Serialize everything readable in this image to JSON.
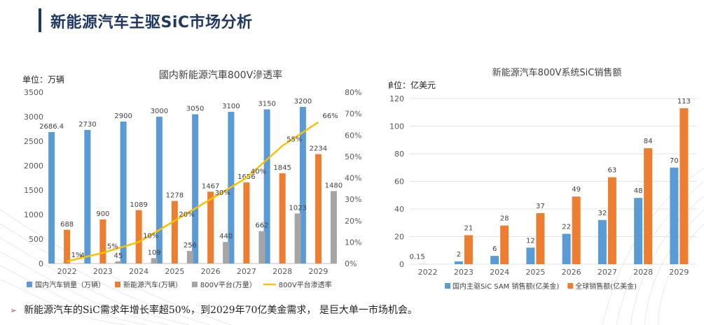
{
  "page": {
    "title": "新能源汽车主驱SiC市场分析",
    "footer": "新能源汽车的SiC需求年增长率超50%，到2029年70亿美金需求， 是巨大单一市场机会。",
    "footer_bullet": "➢"
  },
  "colors": {
    "blue": "#5b9bd5",
    "orange": "#ed7d31",
    "gray": "#a5a5a5",
    "yellow": "#ffc000",
    "title": "#1f3864"
  },
  "chart_data": [
    {
      "type": "bar",
      "title": "國内新能源汽車800V滲透率",
      "unit_label": "单位：万辆",
      "categories": [
        "2022",
        "2023",
        "2024",
        "2025",
        "2026",
        "2027",
        "2028",
        "2029"
      ],
      "ylim": [
        0,
        3500
      ],
      "y_ticks": [
        "0",
        "500",
        "1000",
        "1500",
        "2000",
        "2500",
        "3000",
        "3500"
      ],
      "y2lim": [
        0,
        80
      ],
      "y2_ticks": [
        "0%",
        "10%",
        "20%",
        "30%",
        "40%",
        "50%",
        "60%",
        "70%",
        "80%"
      ],
      "series": [
        {
          "name": "国内汽车销量（万辆）",
          "kind": "bar",
          "axis": "left",
          "color": "#5b9bd5",
          "values": [
            2686.4,
            2730,
            2900,
            3000,
            3050,
            3100,
            3150,
            3200
          ],
          "labels": [
            "2686.4",
            "2730",
            "2900",
            "3000",
            "3050",
            "3100",
            "3150",
            "3200"
          ]
        },
        {
          "name": "新能源汽车(万辆）",
          "kind": "bar",
          "axis": "left",
          "color": "#ed7d31",
          "values": [
            688,
            900,
            1089,
            1278,
            1467,
            1656,
            1845,
            2234
          ],
          "labels": [
            "688",
            "900",
            "1089",
            "1278",
            "1467",
            "1656",
            "1845",
            "2234"
          ]
        },
        {
          "name": "800V平台(万量）",
          "kind": "bar",
          "axis": "left",
          "color": "#a5a5a5",
          "values": [
            4,
            45,
            109,
            256,
            440,
            662,
            1023,
            1480
          ],
          "labels": [
            "4",
            "45",
            "109",
            "256",
            "440",
            "662",
            "1023",
            "1480"
          ]
        },
        {
          "name": "800V平台渗透率",
          "kind": "line",
          "axis": "right",
          "color": "#ffc000",
          "values": [
            1,
            5,
            10,
            20,
            30,
            40,
            55,
            66
          ],
          "labels": [
            "1%",
            "5%",
            "10%",
            "20%",
            "30%",
            "40%",
            "55%",
            "66%"
          ]
        }
      ],
      "grid": false,
      "legend": "bottom"
    },
    {
      "type": "bar",
      "title": "新能源汽车800V系统SiC销售额",
      "unit_label": "单位：亿美元",
      "categories": [
        "2022",
        "2023",
        "2024",
        "2025",
        "2026",
        "2027",
        "2028",
        "2029"
      ],
      "ylim": [
        0,
        120
      ],
      "y_ticks": [
        "0",
        "20",
        "40",
        "60",
        "80",
        "100",
        "120"
      ],
      "series": [
        {
          "name": "国内主驱SiC SAM 销售额(亿美金)",
          "kind": "bar",
          "color": "#5b9bd5",
          "values": [
            0.15,
            2,
            6,
            12,
            22,
            32,
            48,
            70
          ],
          "labels": [
            "0.15",
            "2",
            "6",
            "12",
            "22",
            "32",
            "48",
            "70"
          ]
        },
        {
          "name": "全球销售额(亿美金)",
          "kind": "bar",
          "color": "#ed7d31",
          "values": [
            null,
            21,
            28,
            37,
            49,
            63,
            84,
            113
          ],
          "labels": [
            "",
            "21",
            "28",
            "37",
            "49",
            "63",
            "84",
            "113"
          ]
        }
      ],
      "grid": true,
      "legend": "bottom"
    }
  ]
}
